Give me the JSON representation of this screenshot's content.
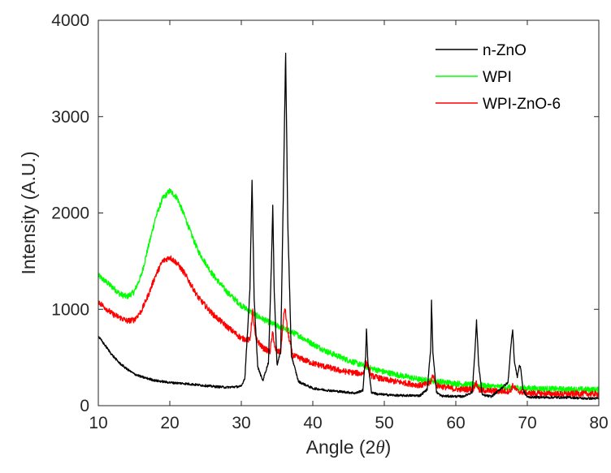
{
  "chart_data": {
    "type": "line",
    "title": "",
    "xlabel": "Angle (2",
    "xlabel_symbol": "θ",
    "xlabel_close": ")",
    "ylabel": "Intensity (A.U.)",
    "xlim": [
      10,
      80
    ],
    "ylim": [
      0,
      4000
    ],
    "x_ticks": [
      10,
      20,
      30,
      40,
      50,
      60,
      70,
      80
    ],
    "y_ticks": [
      0,
      1000,
      2000,
      3000,
      4000
    ],
    "grid": false,
    "legend_position": "top-right",
    "series": [
      {
        "name": "n-ZnO",
        "color": "#000000",
        "noise": 12,
        "x": [
          10,
          11,
          12,
          13,
          14,
          15,
          16,
          17,
          18,
          20,
          22,
          24,
          26,
          28,
          30,
          30.5,
          31.2,
          31.5,
          31.8,
          32.3,
          33,
          33.8,
          34.2,
          34.4,
          34.6,
          35.0,
          35.5,
          35.9,
          36.2,
          36.5,
          37,
          38,
          40,
          42,
          44,
          46,
          47.0,
          47.4,
          47.5,
          47.7,
          48.2,
          49,
          52,
          55,
          56.0,
          56.5,
          56.6,
          56.8,
          57.3,
          58,
          61,
          62.3,
          62.7,
          62.9,
          63.2,
          63.7,
          65,
          67.3,
          67.8,
          67.95,
          68.2,
          68.6,
          68.9,
          69.1,
          69.4,
          70,
          73,
          76,
          78,
          80
        ],
        "values": [
          720,
          620,
          520,
          440,
          380,
          330,
          300,
          280,
          260,
          240,
          230,
          215,
          200,
          190,
          200,
          290,
          1200,
          2350,
          1100,
          400,
          260,
          450,
          1450,
          2080,
          1200,
          420,
          560,
          2300,
          3660,
          1900,
          520,
          250,
          180,
          160,
          145,
          130,
          160,
          530,
          800,
          450,
          140,
          120,
          105,
          105,
          170,
          600,
          1090,
          550,
          140,
          100,
          95,
          140,
          600,
          880,
          420,
          110,
          95,
          240,
          700,
          790,
          450,
          300,
          420,
          380,
          160,
          90,
          85,
          85,
          75,
          75
        ]
      },
      {
        "name": "WPI",
        "color": "#00ff00",
        "noise": 30,
        "x": [
          10,
          12,
          13,
          14,
          15,
          16,
          17,
          18,
          19,
          20,
          21,
          22,
          23,
          24,
          26,
          28,
          30,
          32,
          34,
          36,
          38,
          40,
          42,
          45,
          48,
          50,
          55,
          60,
          65,
          70,
          75,
          80
        ],
        "values": [
          1350,
          1230,
          1160,
          1130,
          1180,
          1350,
          1650,
          1950,
          2150,
          2230,
          2160,
          1980,
          1780,
          1600,
          1360,
          1180,
          1040,
          940,
          860,
          800,
          730,
          640,
          560,
          470,
          390,
          350,
          270,
          230,
          200,
          180,
          170,
          165
        ]
      },
      {
        "name": "WPI-ZnO-6",
        "color": "#ff0000",
        "noise": 30,
        "x": [
          10,
          12,
          14,
          15,
          16,
          17,
          18,
          19,
          20,
          21,
          22,
          23,
          24,
          26,
          28,
          30,
          31.2,
          31.6,
          32.0,
          33,
          34.0,
          34.4,
          34.8,
          35.5,
          35.9,
          36.1,
          36.5,
          37.2,
          40,
          44,
          47.0,
          47.5,
          48.2,
          50,
          55,
          56.4,
          56.8,
          57.3,
          60,
          62.4,
          62.8,
          63.3,
          66,
          67.6,
          68.0,
          68.6,
          70,
          75,
          77,
          80
        ],
        "values": [
          1080,
          950,
          880,
          890,
          980,
          1150,
          1350,
          1500,
          1540,
          1480,
          1380,
          1250,
          1120,
          950,
          820,
          700,
          680,
          980,
          700,
          600,
          560,
          760,
          560,
          560,
          900,
          1020,
          760,
          520,
          440,
          360,
          330,
          450,
          310,
          270,
          210,
          230,
          320,
          210,
          170,
          170,
          240,
          160,
          150,
          150,
          210,
          150,
          130,
          120,
          125,
          120
        ]
      }
    ]
  }
}
